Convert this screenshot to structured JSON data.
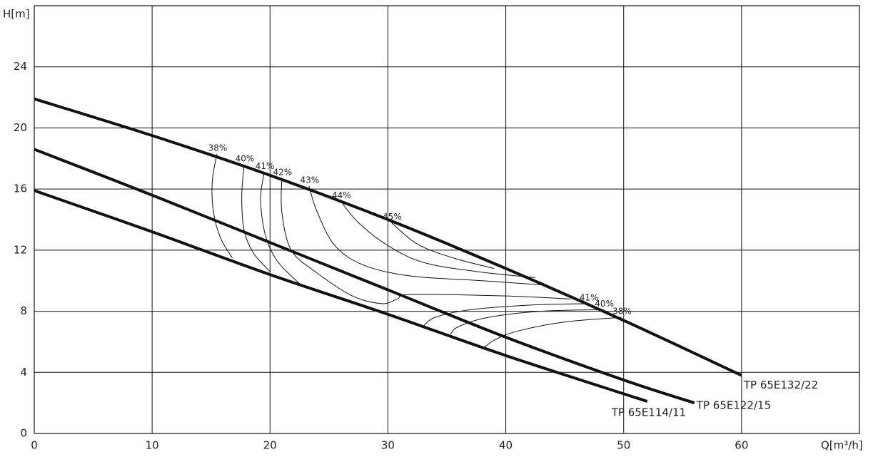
{
  "chart_data": {
    "type": "line",
    "y_label": "H[m]",
    "x_label": "Q[m³/h]",
    "xlim": [
      0,
      70
    ],
    "xticks": [
      0,
      10,
      20,
      30,
      40,
      50,
      60
    ],
    "ylim": [
      0,
      28
    ],
    "yticks": [
      0,
      4,
      8,
      12,
      16,
      20,
      24
    ],
    "grid": true,
    "series": [
      {
        "name": "TP 65E132/22",
        "color": "#111111",
        "x": [
          0,
          10,
          20,
          30,
          40,
          50,
          60
        ],
        "values": [
          21.9,
          19.5,
          16.9,
          14.0,
          10.8,
          7.4,
          3.8
        ]
      },
      {
        "name": "TP 65E122/15",
        "color": "#111111",
        "x": [
          0,
          10,
          20,
          30,
          40,
          50,
          56
        ],
        "values": [
          18.6,
          15.6,
          12.5,
          9.4,
          6.3,
          3.5,
          2.0
        ]
      },
      {
        "name": "TP 65E114/11",
        "color": "#111111",
        "x": [
          0,
          10,
          20,
          30,
          40,
          52
        ],
        "values": [
          15.9,
          13.2,
          10.4,
          7.8,
          5.1,
          2.1
        ]
      }
    ],
    "efficiency_curves": [
      {
        "label": "38%",
        "x": [
          15.5,
          15.1,
          15.2,
          15.8,
          16.8
        ],
        "values": [
          18.3,
          16.5,
          14.5,
          12.8,
          11.5
        ]
      },
      {
        "label": "40%",
        "x": [
          17.8,
          17.6,
          17.8,
          18.6,
          20.0
        ],
        "values": [
          17.6,
          15.5,
          13.3,
          11.8,
          10.6
        ]
      },
      {
        "label": "41%",
        "x": [
          19.5,
          19.2,
          19.6,
          20.6,
          22.5
        ],
        "values": [
          17.1,
          15.3,
          13.0,
          11.3,
          9.8
        ]
      },
      {
        "label": "42%",
        "x": [
          21.0,
          21.0,
          21.8,
          24.0,
          27.0,
          29.5,
          30.8,
          32.0,
          40.0,
          45.5
        ],
        "values": [
          16.7,
          14.5,
          12.0,
          10.5,
          9.0,
          8.5,
          8.8,
          9.1,
          9.0,
          8.8
        ]
      },
      {
        "label": "43%",
        "x": [
          23.3,
          24.0,
          25.5,
          28.0,
          32.0,
          38.0,
          43.5
        ],
        "values": [
          16.2,
          14.5,
          12.3,
          11.0,
          10.3,
          10.0,
          9.7
        ]
      },
      {
        "label": "44%",
        "x": [
          26.0,
          27.5,
          30.0,
          33.0,
          37.5,
          42.5
        ],
        "values": [
          15.2,
          13.8,
          12.3,
          11.2,
          10.6,
          10.2
        ]
      },
      {
        "label": "45%",
        "x": [
          30.3,
          32.5,
          35.5,
          39.0
        ],
        "values": [
          13.8,
          12.4,
          11.5,
          10.8
        ]
      },
      {
        "label": "41%",
        "x": [
          47.0,
          42.0,
          37.0,
          34.0,
          33.0
        ],
        "values": [
          8.5,
          8.4,
          8.1,
          7.6,
          7.0
        ]
      },
      {
        "label": "40%",
        "x": [
          48.3,
          43.0,
          38.5,
          36.0,
          35.3
        ],
        "values": [
          8.1,
          8.0,
          7.6,
          7.0,
          6.5
        ]
      },
      {
        "label": "38%",
        "x": [
          49.8,
          45.0,
          41.0,
          39.0,
          38.0
        ],
        "values": [
          7.6,
          7.3,
          6.7,
          6.1,
          5.5
        ]
      }
    ]
  }
}
